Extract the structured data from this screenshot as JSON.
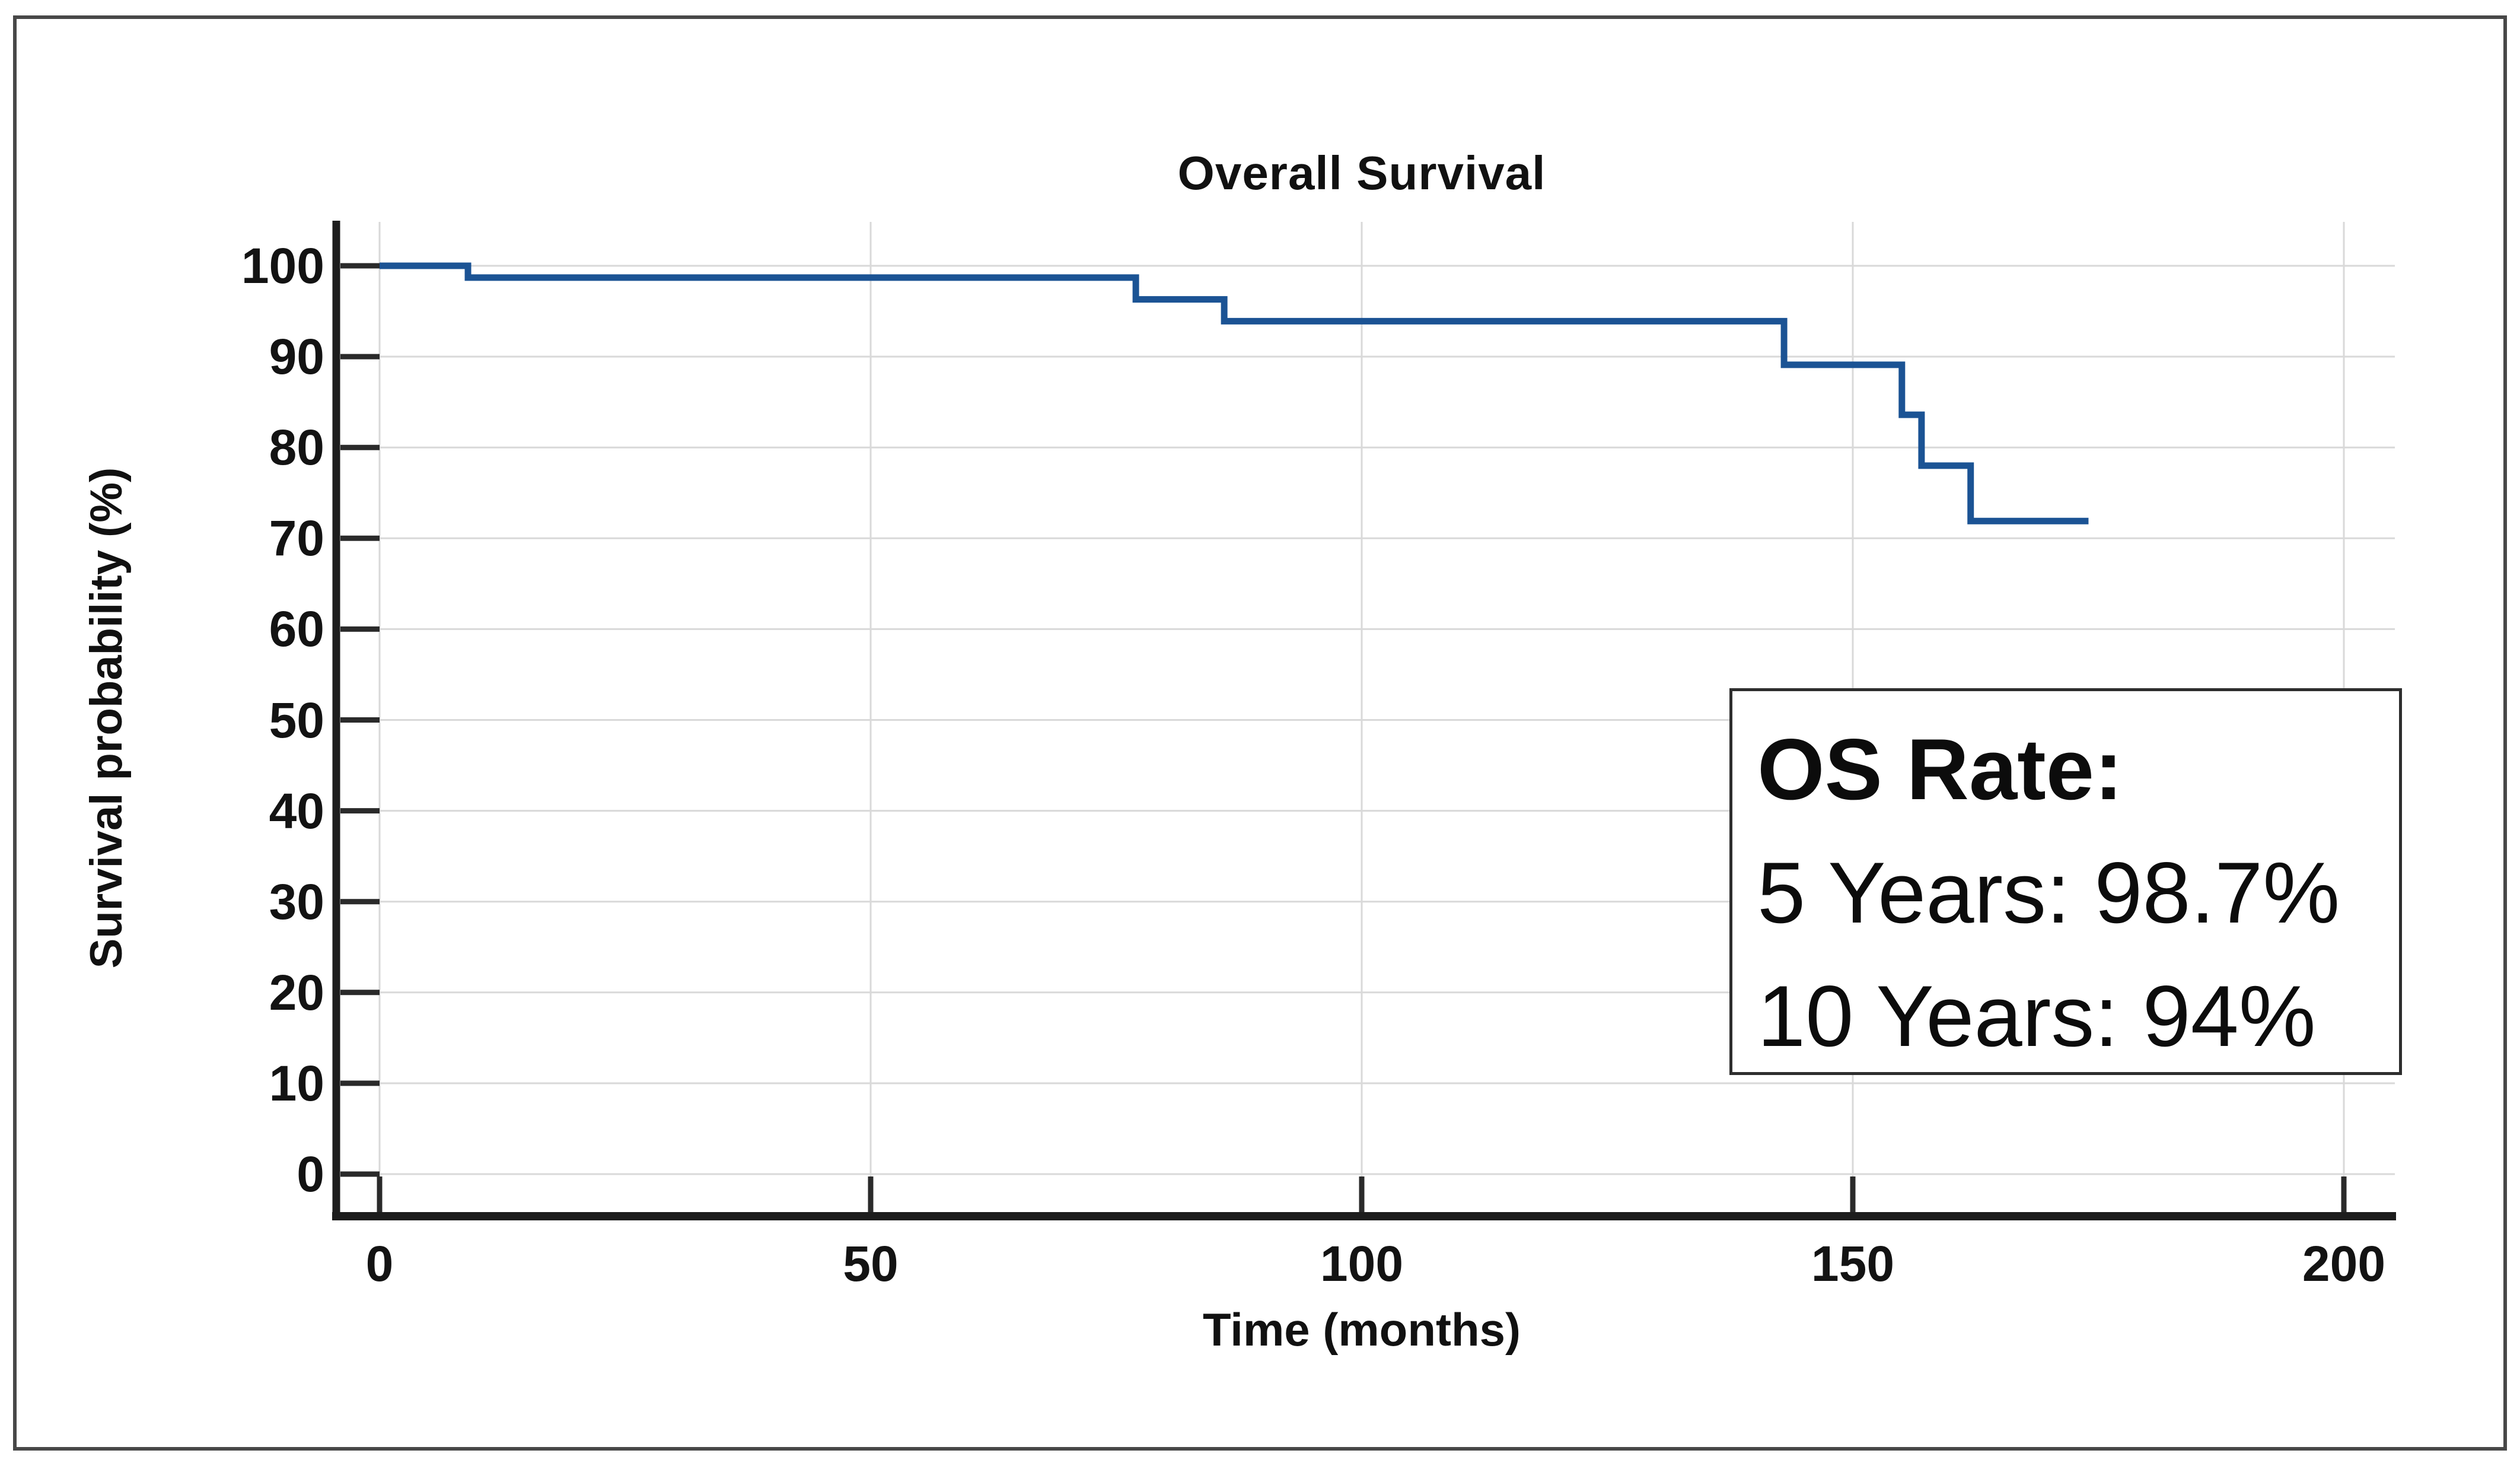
{
  "figure": {
    "title": "Overall Survival",
    "x_axis_label": "Time (months)",
    "y_axis_label": "Survival probability (%)"
  },
  "os_box": {
    "title": "OS Rate:",
    "line1": "5 Years: 98.7%",
    "line2": "10 Years: 94%"
  },
  "colors": {
    "line": "#1b5394",
    "grid": "#d9d9d9",
    "axis": "#1d1d1d",
    "tick": "#2a2a2a",
    "frame": "#484848"
  },
  "chart_data": {
    "type": "line",
    "subtype": "kaplan-meier-step",
    "title": "Overall Survival",
    "xlabel": "Time (months)",
    "ylabel": "Survival probability (%)",
    "x_ticks": [
      0,
      50,
      100,
      150,
      200
    ],
    "y_ticks": [
      0,
      10,
      20,
      30,
      40,
      50,
      60,
      70,
      80,
      90,
      100
    ],
    "xlim": [
      0,
      205
    ],
    "ylim": [
      0,
      100
    ],
    "grid": true,
    "legend": false,
    "series": [
      {
        "name": "Overall Survival",
        "start": {
          "t": 0,
          "s": 100
        },
        "steps": [
          {
            "t": 9,
            "s": 98.7
          },
          {
            "t": 77,
            "s": 96.3
          },
          {
            "t": 86,
            "s": 93.9
          },
          {
            "t": 143,
            "s": 89.1
          },
          {
            "t": 155,
            "s": 83.6
          },
          {
            "t": 157,
            "s": 78.0
          },
          {
            "t": 162,
            "s": 71.9
          }
        ],
        "end_t": 174,
        "end_s": 71.9
      }
    ],
    "annotations": [
      "OS Rate:",
      "5 Years: 98.7%",
      "10 Years: 94%"
    ]
  }
}
